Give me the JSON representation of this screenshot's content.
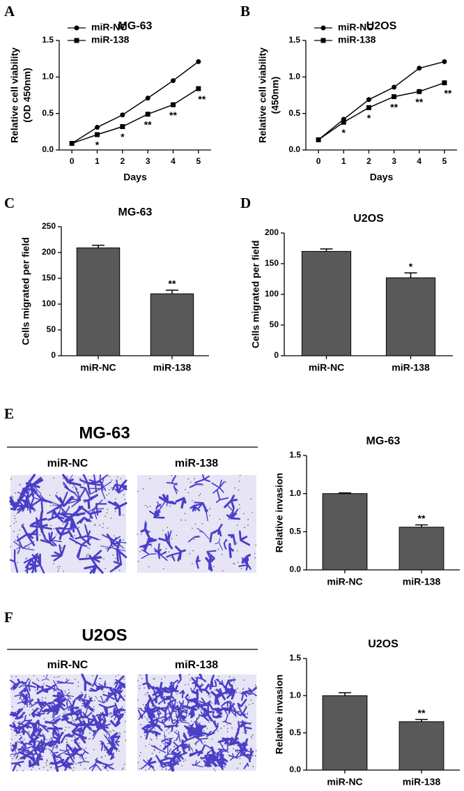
{
  "panel_labels": [
    "A",
    "B",
    "C",
    "D",
    "E",
    "F"
  ],
  "image_panels": [
    {
      "title": "MG-63",
      "labels": [
        "miR-NC",
        "miR-138"
      ]
    },
    {
      "title": "U2OS",
      "labels": [
        "miR-NC",
        "miR-138"
      ]
    }
  ],
  "chart_data": [
    {
      "type": "line",
      "title": "MG-63",
      "ylabel": [
        "Relative cell viability",
        "(OD 450nm)"
      ],
      "xlabel": "Days",
      "x": [
        0,
        1,
        2,
        3,
        4,
        5
      ],
      "xlim": [
        -0.5,
        5.5
      ],
      "xticks": [
        0,
        1,
        2,
        3,
        4,
        5
      ],
      "ylim": [
        0,
        1.5
      ],
      "yticks": [
        {
          "value": 0,
          "label": "0.0"
        },
        0.5,
        {
          "value": 1,
          "label": "1.0"
        },
        1.5
      ],
      "legend": "upper-left",
      "series": [
        {
          "name": "miR-NC",
          "color": "#000000",
          "marker": "circle",
          "values": [
            0.09,
            0.31,
            0.48,
            0.71,
            0.95,
            1.21
          ]
        },
        {
          "name": "miR-138",
          "color": "#000000",
          "marker": "square",
          "values": [
            0.09,
            0.21,
            0.32,
            0.49,
            0.62,
            0.84
          ],
          "annotations": [
            null,
            "*",
            "*",
            "**",
            "**",
            "**"
          ]
        }
      ]
    },
    {
      "type": "line",
      "title": "U2OS",
      "ylabel": [
        "Relative cell viability",
        "(450nm)"
      ],
      "xlabel": "Days",
      "x": [
        0,
        1,
        2,
        3,
        4,
        5
      ],
      "xlim": [
        -0.5,
        5.5
      ],
      "xticks": [
        0,
        1,
        2,
        3,
        4,
        5
      ],
      "ylim": [
        0,
        1.5
      ],
      "yticks": [
        {
          "value": 0,
          "label": "0.0"
        },
        0.5,
        {
          "value": 1,
          "label": "1.0"
        },
        1.5
      ],
      "legend": "upper-left",
      "series": [
        {
          "name": "miR-NC",
          "color": "#000000",
          "marker": "circle",
          "values": [
            0.14,
            0.42,
            0.69,
            0.86,
            1.12,
            1.21
          ]
        },
        {
          "name": "miR-138",
          "color": "#000000",
          "marker": "square",
          "values": [
            0.14,
            0.38,
            0.58,
            0.73,
            0.8,
            0.92
          ],
          "annotations": [
            null,
            "*",
            "*",
            "**",
            "**",
            "**"
          ]
        }
      ]
    },
    {
      "type": "bar",
      "title": "MG-63",
      "ylabel": "Cells migrated per field",
      "color": "#595959",
      "categories": [
        "miR-NC",
        "miR-138"
      ],
      "values": [
        209,
        120
      ],
      "errors": [
        5,
        7
      ],
      "annotations": [
        null,
        "**"
      ],
      "ylim": [
        0,
        250
      ],
      "yticks": [
        0,
        50,
        100,
        150,
        200,
        250
      ]
    },
    {
      "type": "bar",
      "title": "U2OS",
      "ylabel": "Cells migrated per field",
      "color": "#595959",
      "categories": [
        "miR-NC",
        "miR-138"
      ],
      "values": [
        170,
        127
      ],
      "errors": [
        4,
        8
      ],
      "annotations": [
        null,
        "*"
      ],
      "ylim": [
        0,
        200
      ],
      "yticks": [
        0,
        50,
        100,
        150,
        200
      ]
    },
    {
      "type": "bar",
      "title": "MG-63",
      "ylabel": "Relative invasion",
      "color": "#595959",
      "categories": [
        "miR-NC",
        "miR-138"
      ],
      "values": [
        1.0,
        0.56
      ],
      "errors": [
        0.01,
        0.03
      ],
      "annotations": [
        null,
        "**"
      ],
      "ylim": [
        0,
        1.5
      ],
      "yticks": [
        {
          "value": 0,
          "label": "0.0"
        },
        0.5,
        {
          "value": 1,
          "label": "1.0"
        },
        1.5
      ]
    },
    {
      "type": "bar",
      "title": "U2OS",
      "ylabel": "Relative invasion",
      "color": "#595959",
      "categories": [
        "miR-NC",
        "miR-138"
      ],
      "values": [
        1.0,
        0.65
      ],
      "errors": [
        0.04,
        0.03
      ],
      "annotations": [
        null,
        "**"
      ],
      "ylim": [
        0,
        1.5
      ],
      "yticks": [
        {
          "value": 0,
          "label": "0.0"
        },
        0.5,
        {
          "value": 1,
          "label": "1.0"
        },
        1.5
      ]
    }
  ]
}
